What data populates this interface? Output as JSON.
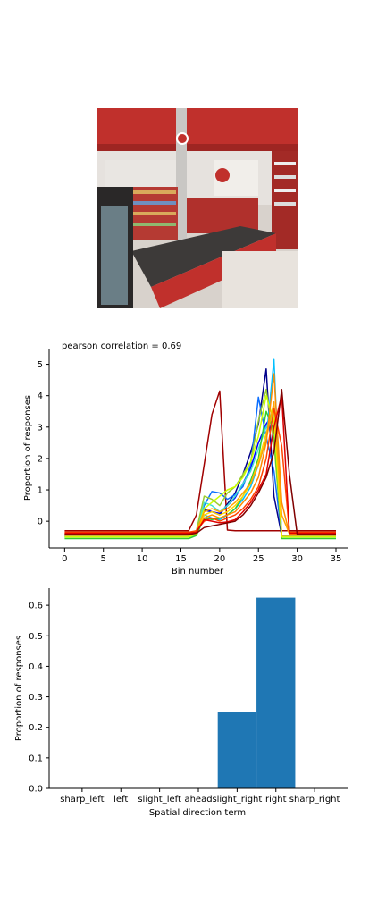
{
  "chart_data": [
    {
      "type": "line",
      "title": "pearson correlation = 0.69",
      "xlabel": "Bin number",
      "ylabel": "Proportion of responses",
      "xlim": [
        -2,
        36.5
      ],
      "ylim": [
        -0.85,
        5.5
      ],
      "xticks": [
        0,
        5,
        10,
        15,
        20,
        25,
        30,
        35
      ],
      "yticks": [
        0,
        1,
        2,
        3,
        4,
        5
      ],
      "x": [
        0,
        16,
        17,
        18,
        19,
        20,
        21,
        22,
        23,
        24,
        25,
        26,
        27,
        28,
        29,
        30,
        35
      ],
      "series": [
        {
          "color": "#a00000",
          "values": [
            -0.3,
            -0.3,
            0.2,
            1.8,
            3.4,
            4.15,
            -0.28,
            -0.3,
            -0.3,
            -0.3,
            -0.3,
            -0.3,
            -0.3,
            -0.3,
            -0.3,
            -0.3,
            -0.3
          ]
        },
        {
          "color": "#00008b",
          "values": [
            -0.45,
            -0.45,
            -0.3,
            0.35,
            0.3,
            0.2,
            0.55,
            0.9,
            1.5,
            2.2,
            3.1,
            4.85,
            0.8,
            -0.45,
            -0.45,
            -0.45,
            -0.45
          ]
        },
        {
          "color": "#0000ff",
          "values": [
            -0.45,
            -0.45,
            -0.3,
            0.4,
            0.3,
            0.25,
            0.5,
            0.75,
            1.2,
            1.7,
            2.5,
            3.1,
            3.45,
            -0.45,
            -0.45,
            -0.45,
            -0.45
          ]
        },
        {
          "color": "#0a6eff",
          "values": [
            -0.45,
            -0.45,
            -0.35,
            0.5,
            0.95,
            0.9,
            0.7,
            0.85,
            1.1,
            1.8,
            3.95,
            2.7,
            1.6,
            -0.45,
            -0.45,
            -0.45,
            -0.45
          ]
        },
        {
          "color": "#00bfff",
          "values": [
            -0.5,
            -0.5,
            -0.4,
            0.2,
            0.1,
            0.05,
            0.2,
            0.4,
            0.7,
            1.1,
            1.8,
            2.6,
            5.15,
            -0.5,
            -0.5,
            -0.5,
            -0.5
          ]
        },
        {
          "color": "#40e0d0",
          "values": [
            -0.5,
            -0.5,
            -0.4,
            0.6,
            0.5,
            0.3,
            0.5,
            0.8,
            1.2,
            1.6,
            2.3,
            3.0,
            3.4,
            -0.5,
            -0.5,
            -0.5,
            -0.5
          ]
        },
        {
          "color": "#9acd32",
          "values": [
            -0.5,
            -0.5,
            -0.3,
            0.8,
            0.7,
            0.5,
            0.9,
            1.1,
            1.5,
            1.9,
            3.2,
            4.2,
            2.5,
            -0.5,
            -0.5,
            -0.5,
            -0.5
          ]
        },
        {
          "color": "#32cd32",
          "values": [
            -0.55,
            -0.55,
            -0.45,
            0.1,
            0.05,
            0.1,
            0.2,
            0.4,
            0.8,
            1.3,
            2.0,
            3.5,
            2.9,
            -0.55,
            -0.55,
            -0.55,
            -0.55
          ]
        },
        {
          "color": "#ccff00",
          "values": [
            -0.5,
            -0.5,
            -0.4,
            0.4,
            0.6,
            0.8,
            1.0,
            1.1,
            1.4,
            1.9,
            2.7,
            4.0,
            3.2,
            -0.5,
            -0.5,
            -0.5,
            -0.5
          ]
        },
        {
          "color": "#ffd700",
          "values": [
            -0.45,
            -0.45,
            -0.35,
            0.2,
            0.3,
            0.2,
            0.3,
            0.5,
            0.8,
            1.2,
            1.9,
            2.8,
            3.6,
            -0.45,
            -0.45,
            -0.45,
            -0.45
          ]
        },
        {
          "color": "#ffa500",
          "values": [
            -0.4,
            -0.4,
            -0.3,
            0.3,
            0.4,
            0.3,
            0.4,
            0.6,
            0.9,
            1.2,
            1.8,
            2.6,
            3.8,
            0.2,
            -0.4,
            -0.4,
            -0.4
          ]
        },
        {
          "color": "#ff8c00",
          "values": [
            -0.4,
            -0.4,
            -0.35,
            0.1,
            0.2,
            0.1,
            0.2,
            0.3,
            0.6,
            0.9,
            1.4,
            2.5,
            4.7,
            0.6,
            -0.4,
            -0.4,
            -0.4
          ]
        },
        {
          "color": "#ff4500",
          "values": [
            -0.35,
            -0.35,
            -0.3,
            0.0,
            0.1,
            0.0,
            0.1,
            0.2,
            0.4,
            0.7,
            1.1,
            2.0,
            3.6,
            2.4,
            -0.35,
            -0.35,
            -0.35
          ]
        },
        {
          "color": "#e00000",
          "values": [
            -0.38,
            -0.38,
            -0.35,
            0.05,
            0.0,
            -0.05,
            -0.02,
            0.05,
            0.3,
            0.6,
            1.0,
            1.5,
            3.0,
            4.0,
            -0.38,
            -0.38,
            -0.38
          ]
        },
        {
          "color": "#800000",
          "values": [
            -0.42,
            -0.42,
            -0.38,
            -0.2,
            -0.15,
            -0.1,
            -0.05,
            0.0,
            0.2,
            0.5,
            0.9,
            1.4,
            2.2,
            4.2,
            1.5,
            -0.42,
            -0.42
          ]
        }
      ]
    },
    {
      "type": "bar",
      "xlabel": "Spatial direction term",
      "ylabel": "Proportion of responses",
      "categories": [
        "sharp_left",
        "left",
        "slight_left",
        "ahead",
        "slight_right",
        "right",
        "sharp_right"
      ],
      "values": [
        0.0,
        0.0,
        0.0,
        0.0,
        0.25,
        0.625,
        0.0
      ],
      "ylim": [
        0,
        0.656
      ],
      "yticks": [
        "0.0",
        "0.1",
        "0.2",
        "0.3",
        "0.4",
        "0.5",
        "0.6"
      ],
      "bar_color": "#1f77b4"
    }
  ]
}
